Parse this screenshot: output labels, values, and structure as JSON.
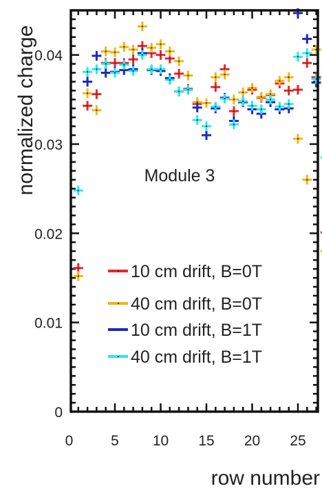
{
  "chart_data": {
    "type": "scatter",
    "title": "",
    "xlabel": "row number",
    "ylabel": "normalized charge",
    "annotation": "Module 3",
    "xlim": [
      -0.5,
      28
    ],
    "ylim": [
      0,
      0.045
    ],
    "x_ticks": [
      0,
      5,
      10,
      15,
      20,
      25
    ],
    "y_ticks": [
      0,
      0.01,
      0.02,
      0.03,
      0.04
    ],
    "x_tick_labels": [
      "0",
      "5",
      "10",
      "15",
      "20",
      "25"
    ],
    "y_tick_labels": [
      "0",
      "0.01",
      "0.02",
      "0.03",
      "0.04"
    ],
    "grid": false,
    "legend_position": "bottom-right",
    "series": [
      {
        "name": "10 cm drift, B=0T",
        "color": "#e8262b",
        "points": [
          [
            1,
            0.0161
          ],
          [
            2,
            0.0343
          ],
          [
            3,
            0.0356
          ],
          [
            4,
            0.0391
          ],
          [
            5,
            0.0391
          ],
          [
            6,
            0.0391
          ],
          [
            7,
            0.0395
          ],
          [
            8,
            0.041
          ],
          [
            9,
            0.0402
          ],
          [
            10,
            0.04
          ],
          [
            11,
            0.0396
          ],
          [
            12,
            0.0379
          ],
          [
            13,
            0.0362
          ],
          [
            14,
            0.0345
          ],
          [
            15,
            0.0346
          ],
          [
            16,
            0.0364
          ],
          [
            17,
            0.0384
          ],
          [
            18,
            0.0337
          ],
          [
            19,
            0.0347
          ],
          [
            20,
            0.0361
          ],
          [
            21,
            0.0352
          ],
          [
            22,
            0.0355
          ],
          [
            23,
            0.0368
          ],
          [
            24,
            0.036
          ],
          [
            25,
            0.0361
          ],
          [
            26,
            0.0391
          ],
          [
            27,
            0.0375
          ],
          [
            28,
            0.0201
          ]
        ]
      },
      {
        "name": "40 cm drift, B=0T",
        "color": "#f2b414",
        "points": [
          [
            1,
            0.0152
          ],
          [
            2,
            0.0357
          ],
          [
            3,
            0.0338
          ],
          [
            4,
            0.0404
          ],
          [
            5,
            0.0403
          ],
          [
            6,
            0.0409
          ],
          [
            7,
            0.0406
          ],
          [
            8,
            0.0432
          ],
          [
            9,
            0.0408
          ],
          [
            10,
            0.0412
          ],
          [
            11,
            0.0404
          ],
          [
            12,
            0.0393
          ],
          [
            13,
            0.0377
          ],
          [
            14,
            0.0347
          ],
          [
            15,
            0.0346
          ],
          [
            16,
            0.0375
          ],
          [
            17,
            0.0378
          ],
          [
            18,
            0.035
          ],
          [
            19,
            0.0358
          ],
          [
            20,
            0.0363
          ],
          [
            21,
            0.0353
          ],
          [
            22,
            0.0356
          ],
          [
            23,
            0.0371
          ],
          [
            24,
            0.0375
          ],
          [
            25,
            0.0306
          ],
          [
            26,
            0.026
          ],
          [
            27,
            0.0406
          ],
          [
            28,
            0.018
          ]
        ]
      },
      {
        "name": "10 cm drift, B=1T",
        "color": "#1b26c8",
        "points": [
          [
            2,
            0.037
          ],
          [
            3,
            0.0399
          ],
          [
            4,
            0.038
          ],
          [
            5,
            0.0381
          ],
          [
            6,
            0.0383
          ],
          [
            7,
            0.0384
          ],
          [
            8,
            0.0402
          ],
          [
            9,
            0.0383
          ],
          [
            10,
            0.0382
          ],
          [
            11,
            0.0374
          ],
          [
            12,
            0.0359
          ],
          [
            13,
            0.0361
          ],
          [
            14,
            0.0341
          ],
          [
            15,
            0.031
          ],
          [
            16,
            0.034
          ],
          [
            17,
            0.0352
          ],
          [
            18,
            0.0326
          ],
          [
            19,
            0.0347
          ],
          [
            20,
            0.0339
          ],
          [
            21,
            0.0334
          ],
          [
            22,
            0.0347
          ],
          [
            23,
            0.0339
          ],
          [
            24,
            0.034
          ],
          [
            25,
            0.0447
          ],
          [
            26,
            0.0418
          ],
          [
            27,
            0.0369
          ]
        ]
      },
      {
        "name": "40 cm drift, B=1T",
        "color": "#28e8f2",
        "points": [
          [
            1,
            0.0248
          ],
          [
            2,
            0.0381
          ],
          [
            3,
            0.0384
          ],
          [
            4,
            0.039
          ],
          [
            5,
            0.038
          ],
          [
            6,
            0.0389
          ],
          [
            7,
            0.0382
          ],
          [
            8,
            0.04
          ],
          [
            9,
            0.0384
          ],
          [
            10,
            0.0384
          ],
          [
            11,
            0.0372
          ],
          [
            12,
            0.0359
          ],
          [
            13,
            0.0361
          ],
          [
            14,
            0.0327
          ],
          [
            15,
            0.032
          ],
          [
            16,
            0.0342
          ],
          [
            17,
            0.0351
          ],
          [
            18,
            0.0322
          ],
          [
            19,
            0.0348
          ],
          [
            20,
            0.0343
          ],
          [
            21,
            0.0339
          ],
          [
            22,
            0.035
          ],
          [
            23,
            0.0342
          ],
          [
            24,
            0.0345
          ],
          [
            25,
            0.0398
          ],
          [
            26,
            0.0402
          ],
          [
            27,
            0.0373
          ],
          [
            28,
            0.0285
          ]
        ]
      }
    ]
  }
}
